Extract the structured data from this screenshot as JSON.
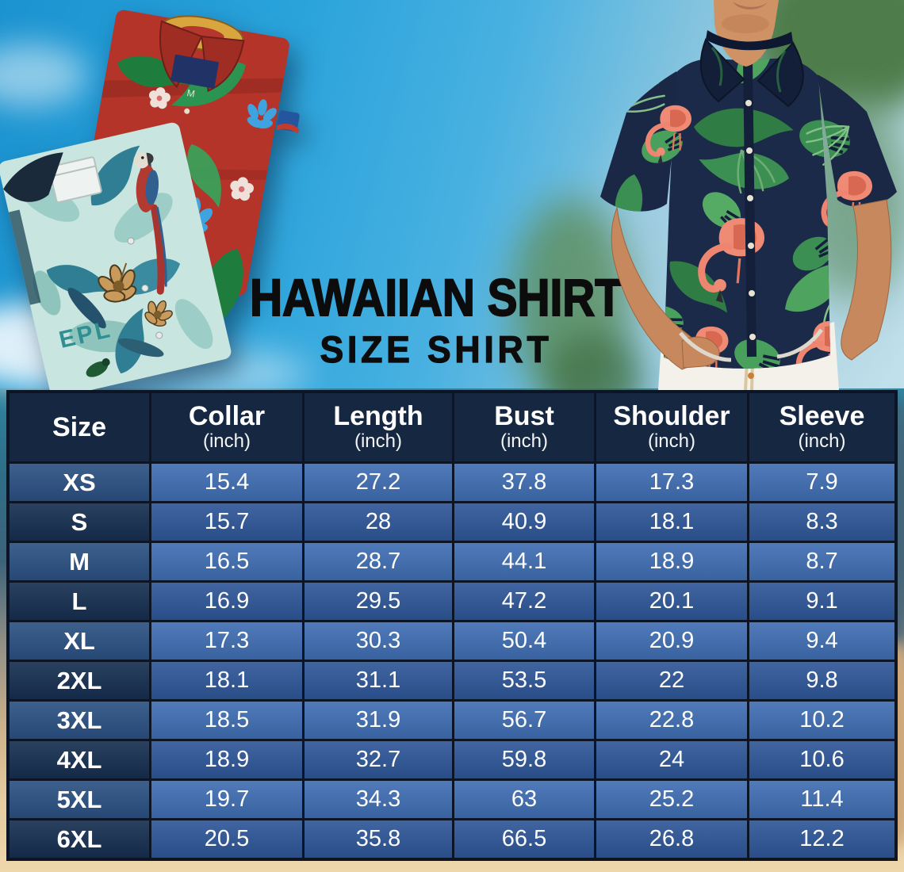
{
  "header": {
    "title": "HAWAIIAN SHIRT",
    "subtitle": "SIZE SHIRT"
  },
  "table": {
    "columns": [
      {
        "label": "Size",
        "unit": ""
      },
      {
        "label": "Collar",
        "unit": "(inch)"
      },
      {
        "label": "Length",
        "unit": "(inch)"
      },
      {
        "label": "Bust",
        "unit": "(inch)"
      },
      {
        "label": "Shoulder",
        "unit": "(inch)"
      },
      {
        "label": "Sleeve",
        "unit": "(inch)"
      }
    ],
    "rows": [
      {
        "size": "XS",
        "values": [
          "15.4",
          "27.2",
          "37.8",
          "17.3",
          "7.9"
        ]
      },
      {
        "size": "S",
        "values": [
          "15.7",
          "28",
          "40.9",
          "18.1",
          "8.3"
        ]
      },
      {
        "size": "M",
        "values": [
          "16.5",
          "28.7",
          "44.1",
          "18.9",
          "8.7"
        ]
      },
      {
        "size": "L",
        "values": [
          "16.9",
          "29.5",
          "47.2",
          "20.1",
          "9.1"
        ]
      },
      {
        "size": "XL",
        "values": [
          "17.3",
          "30.3",
          "50.4",
          "20.9",
          "9.4"
        ]
      },
      {
        "size": "2XL",
        "values": [
          "18.1",
          "31.1",
          "53.5",
          "22",
          "9.8"
        ]
      },
      {
        "size": "3XL",
        "values": [
          "18.5",
          "31.9",
          "56.7",
          "22.8",
          "10.2"
        ]
      },
      {
        "size": "4XL",
        "values": [
          "18.9",
          "32.7",
          "59.8",
          "24",
          "10.6"
        ]
      },
      {
        "size": "5XL",
        "values": [
          "19.7",
          "34.3",
          "63",
          "25.2",
          "11.4"
        ]
      },
      {
        "size": "6XL",
        "values": [
          "20.5",
          "35.8",
          "66.5",
          "26.8",
          "12.2"
        ]
      }
    ]
  },
  "chart_data": {
    "type": "table",
    "title": "Hawaiian Shirt Size Shirt",
    "columns": [
      "Size",
      "Collar (inch)",
      "Length (inch)",
      "Bust (inch)",
      "Shoulder (inch)",
      "Sleeve (inch)"
    ],
    "rows": [
      [
        "XS",
        15.4,
        27.2,
        37.8,
        17.3,
        7.9
      ],
      [
        "S",
        15.7,
        28,
        40.9,
        18.1,
        8.3
      ],
      [
        "M",
        16.5,
        28.7,
        44.1,
        18.9,
        8.7
      ],
      [
        "L",
        16.9,
        29.5,
        47.2,
        20.1,
        9.1
      ],
      [
        "XL",
        17.3,
        30.3,
        50.4,
        20.9,
        9.4
      ],
      [
        "2XL",
        18.1,
        31.1,
        53.5,
        22,
        9.8
      ],
      [
        "3XL",
        18.5,
        31.9,
        56.7,
        22.8,
        10.2
      ],
      [
        "4XL",
        18.9,
        32.7,
        59.8,
        24,
        10.6
      ],
      [
        "5XL",
        19.7,
        34.3,
        63,
        25.2,
        11.4
      ],
      [
        "6XL",
        20.5,
        35.8,
        66.5,
        26.8,
        12.2
      ]
    ]
  },
  "images": {
    "left_photo": "folded-red-and-teal-hawaiian-shirts",
    "right_photo": "man-wearing-navy-flamingo-hawaiian-shirt",
    "teal_shirt_text": "EPL",
    "red_shirt_size_tag": "M"
  },
  "colors": {
    "title_color": "#0c0c0c",
    "table_border": "#0b1526",
    "header_bg": "#152741",
    "row_odd_label_bg": "#2b5082",
    "row_odd_value_bg": "#3f6db2",
    "row_even_label_bg": "#162e50",
    "row_even_value_bg": "#2d5697",
    "table_text": "#ffffff",
    "sky_blue": "#2aa3db",
    "sand": "#e9cfa2"
  }
}
